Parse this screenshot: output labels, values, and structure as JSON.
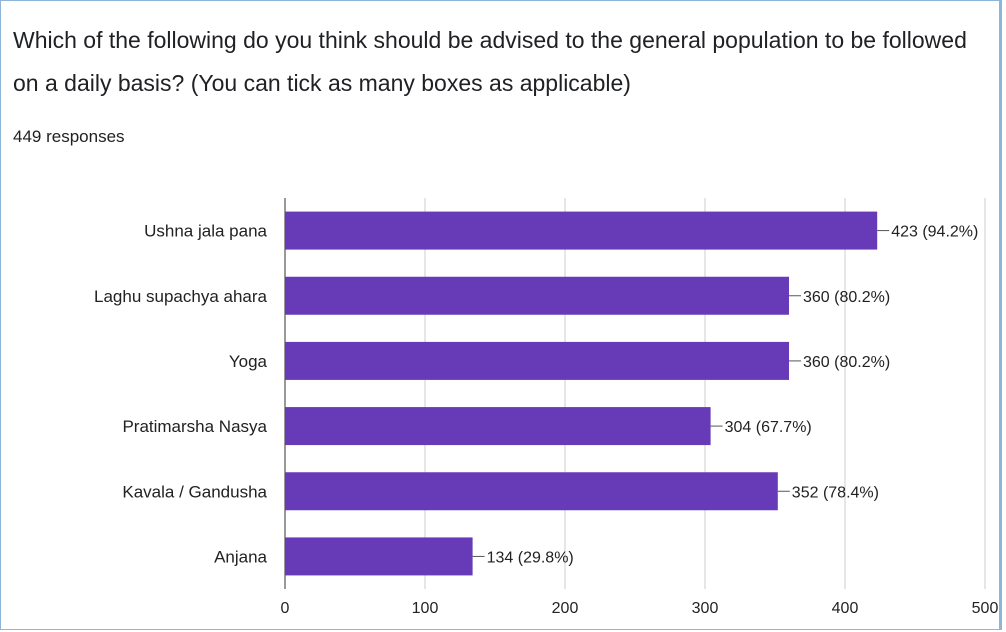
{
  "question": {
    "title": "Which of the following do you think should be advised to the general population to be followed on a daily basis? (You can tick as many boxes as applicable)",
    "responses": "449 responses"
  },
  "colors": {
    "bar": "#673ab7",
    "grid": "#cccccc"
  },
  "chart_data": {
    "type": "bar",
    "orientation": "horizontal",
    "categories": [
      "Ushna jala pana",
      "Laghu supachya ahara",
      "Yoga",
      "Pratimarsha Nasya",
      "Kavala / Gandusha",
      "Anjana"
    ],
    "values": [
      423,
      360,
      360,
      304,
      352,
      134
    ],
    "data_labels": [
      "423 (94.2%)",
      "360 (80.2%)",
      "360 (80.2%)",
      "304 (67.7%)",
      "352 (78.4%)",
      "134 (29.8%)"
    ],
    "xlim": [
      0,
      500
    ],
    "xticks": [
      0,
      100,
      200,
      300,
      400,
      500
    ],
    "grid": true
  }
}
